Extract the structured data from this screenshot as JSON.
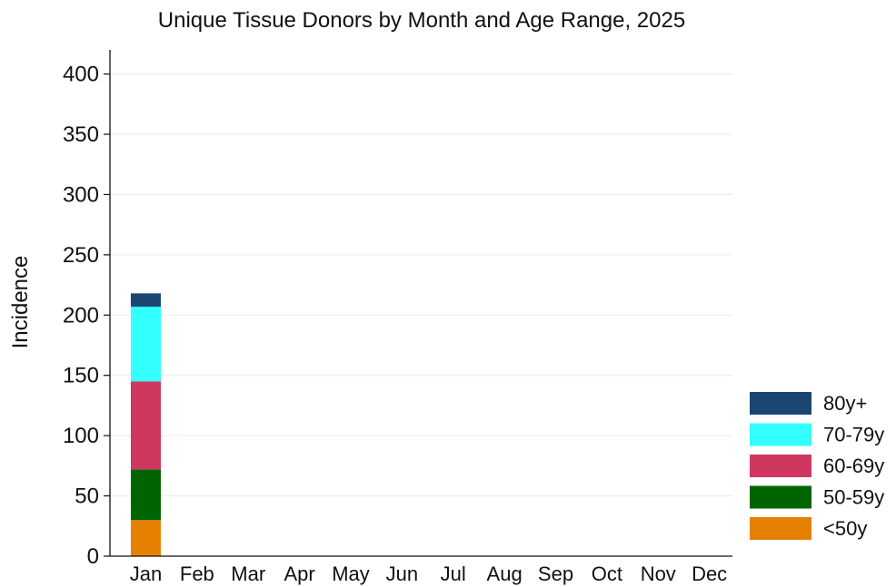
{
  "chart_data": {
    "type": "bar",
    "stacked": true,
    "title": "Unique Tissue Donors by Month and Age Range, 2025",
    "xlabel": "",
    "ylabel": "Incidence",
    "ylim": [
      0,
      420
    ],
    "yticks": [
      0,
      50,
      100,
      150,
      200,
      250,
      300,
      350,
      400
    ],
    "grid": true,
    "legend_position": "right",
    "categories": [
      "Jan",
      "Feb",
      "Mar",
      "Apr",
      "May",
      "Jun",
      "Jul",
      "Aug",
      "Sep",
      "Oct",
      "Nov",
      "Dec"
    ],
    "series": [
      {
        "name": "<50y",
        "color": "#E68000",
        "values": [
          30,
          0,
          0,
          0,
          0,
          0,
          0,
          0,
          0,
          0,
          0,
          0
        ]
      },
      {
        "name": "50-59y",
        "color": "#006400",
        "values": [
          42,
          0,
          0,
          0,
          0,
          0,
          0,
          0,
          0,
          0,
          0,
          0
        ]
      },
      {
        "name": "60-69y",
        "color": "#D0375F",
        "values": [
          73,
          0,
          0,
          0,
          0,
          0,
          0,
          0,
          0,
          0,
          0,
          0
        ]
      },
      {
        "name": "70-79y",
        "color": "#33FFFF",
        "values": [
          62,
          0,
          0,
          0,
          0,
          0,
          0,
          0,
          0,
          0,
          0,
          0
        ]
      },
      {
        "name": "80y+",
        "color": "#1B4671",
        "values": [
          11,
          0,
          0,
          0,
          0,
          0,
          0,
          0,
          0,
          0,
          0,
          0
        ]
      }
    ],
    "legend_order": [
      "80y+",
      "70-79y",
      "60-69y",
      "50-59y",
      "<50y"
    ]
  }
}
